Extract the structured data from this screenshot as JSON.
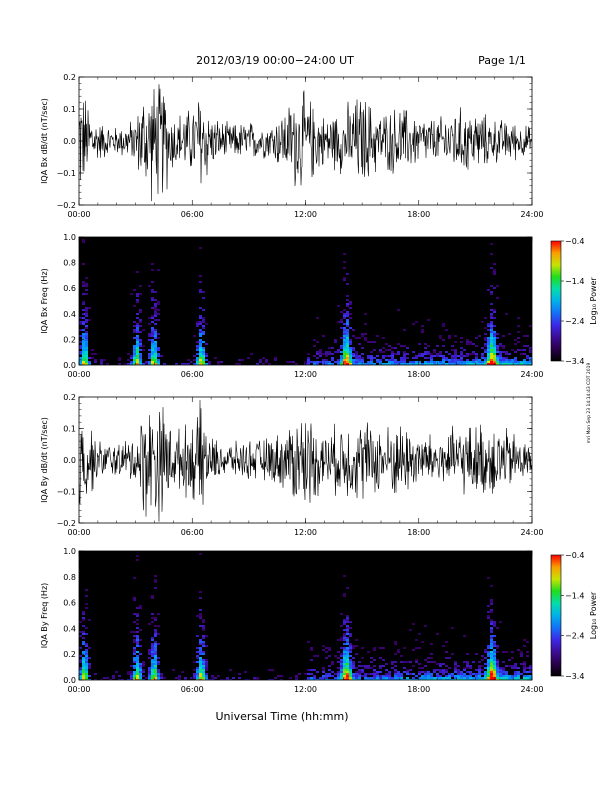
{
  "header": {
    "title": "2012/03/19  00:00−24:00 UT",
    "page": "Page 1/1"
  },
  "stamp": "mri Mon Sep 23 14:14:43 CDT 2019",
  "chart_data": [
    {
      "type": "line",
      "ylabel": "IQA Bx dB/dt (nT/sec)",
      "ylim": [
        -0.2,
        0.2
      ],
      "yticks": [
        "0.2",
        "0.1",
        "0.0",
        "−0.1",
        "−0.2"
      ],
      "xticks": [
        "00:00",
        "06:00",
        "12:00",
        "18:00",
        "24:00"
      ],
      "x": [
        "00:00",
        "01:00",
        "02:00",
        "03:00",
        "03:30",
        "04:00",
        "04:30",
        "05:00",
        "06:00",
        "06:30",
        "07:00",
        "08:00",
        "09:00",
        "10:00",
        "11:00",
        "11:30",
        "12:00",
        "13:00",
        "14:00",
        "14:30",
        "15:00",
        "16:00",
        "17:00",
        "18:00",
        "19:00",
        "20:00",
        "21:00",
        "22:00",
        "23:00",
        "24:00"
      ],
      "series": [
        {
          "values_hi": [
            0.21,
            0.07,
            0.05,
            0.08,
            0.2,
            0.21,
            0.21,
            0.1,
            0.12,
            0.21,
            0.09,
            0.06,
            0.07,
            0.06,
            0.12,
            0.18,
            0.17,
            0.09,
            0.12,
            0.15,
            0.17,
            0.1,
            0.13,
            0.09,
            0.08,
            0.12,
            0.11,
            0.08,
            0.07,
            0.05
          ],
          "values_lo": [
            -0.21,
            -0.07,
            -0.05,
            -0.08,
            -0.2,
            -0.21,
            -0.21,
            -0.1,
            -0.12,
            -0.21,
            -0.09,
            -0.06,
            -0.07,
            -0.06,
            -0.12,
            -0.18,
            -0.17,
            -0.09,
            -0.12,
            -0.15,
            -0.17,
            -0.1,
            -0.13,
            -0.09,
            -0.08,
            -0.12,
            -0.11,
            -0.08,
            -0.07,
            -0.05
          ]
        }
      ],
      "grid": false
    },
    {
      "type": "heatmap",
      "ylabel": "IQA Bx Freq (Hz)",
      "ylim": [
        0.0,
        1.0
      ],
      "yticks": [
        "1.0",
        "0.8",
        "0.6",
        "0.4",
        "0.2",
        "0.0"
      ],
      "xticks": [
        "00:00",
        "06:00",
        "12:00",
        "18:00",
        "24:00"
      ],
      "colorbar": {
        "label": "Log₁₀ Power",
        "range": [
          -3.4,
          -0.4
        ],
        "ticks": [
          "−0.4",
          "−1.4",
          "−2.4",
          "−3.4"
        ]
      },
      "bursts_hours": [
        0.2,
        3.0,
        3.9,
        6.4,
        14.1,
        21.8
      ],
      "grid": false
    },
    {
      "type": "line",
      "ylabel": "IQA By dB/dt (nT/sec)",
      "ylim": [
        -0.2,
        0.2
      ],
      "yticks": [
        "0.2",
        "0.1",
        "0.0",
        "−0.1",
        "−0.2"
      ],
      "xticks": [
        "00:00",
        "06:00",
        "12:00",
        "18:00",
        "24:00"
      ],
      "x": [
        "00:00",
        "01:00",
        "02:00",
        "03:00",
        "03:30",
        "04:00",
        "04:30",
        "05:00",
        "06:00",
        "06:30",
        "07:00",
        "08:00",
        "09:00",
        "10:00",
        "11:00",
        "11:30",
        "12:00",
        "13:00",
        "14:00",
        "14:30",
        "15:00",
        "16:00",
        "17:00",
        "18:00",
        "19:00",
        "20:00",
        "21:00",
        "22:00",
        "23:00",
        "24:00"
      ],
      "series": [
        {
          "values_hi": [
            0.21,
            0.07,
            0.06,
            0.09,
            0.21,
            0.21,
            0.21,
            0.1,
            0.14,
            0.21,
            0.08,
            0.06,
            0.07,
            0.08,
            0.11,
            0.17,
            0.18,
            0.1,
            0.14,
            0.14,
            0.15,
            0.12,
            0.14,
            0.1,
            0.09,
            0.12,
            0.13,
            0.14,
            0.1,
            0.06
          ],
          "values_lo": [
            -0.21,
            -0.07,
            -0.06,
            -0.09,
            -0.21,
            -0.21,
            -0.21,
            -0.1,
            -0.14,
            -0.21,
            -0.08,
            -0.06,
            -0.07,
            -0.08,
            -0.11,
            -0.17,
            -0.18,
            -0.1,
            -0.14,
            -0.14,
            -0.15,
            -0.12,
            -0.14,
            -0.1,
            -0.09,
            -0.12,
            -0.13,
            -0.14,
            -0.1,
            -0.06
          ]
        }
      ],
      "grid": false
    },
    {
      "type": "heatmap",
      "ylabel": "IQA By Freq (Hz)",
      "ylim": [
        0.0,
        1.0
      ],
      "yticks": [
        "1.0",
        "0.8",
        "0.6",
        "0.4",
        "0.2",
        "0.0"
      ],
      "xticks": [
        "00:00",
        "06:00",
        "12:00",
        "18:00",
        "24:00"
      ],
      "colorbar": {
        "label": "Log₁₀ Power",
        "range": [
          -3.4,
          -0.4
        ],
        "ticks": [
          "−0.4",
          "−1.4",
          "−2.4",
          "−3.4"
        ]
      },
      "bursts_hours": [
        0.2,
        3.0,
        3.9,
        6.4,
        14.1,
        21.8
      ],
      "grid": false
    }
  ],
  "xlabel": "Universal Time (hh:mm)"
}
